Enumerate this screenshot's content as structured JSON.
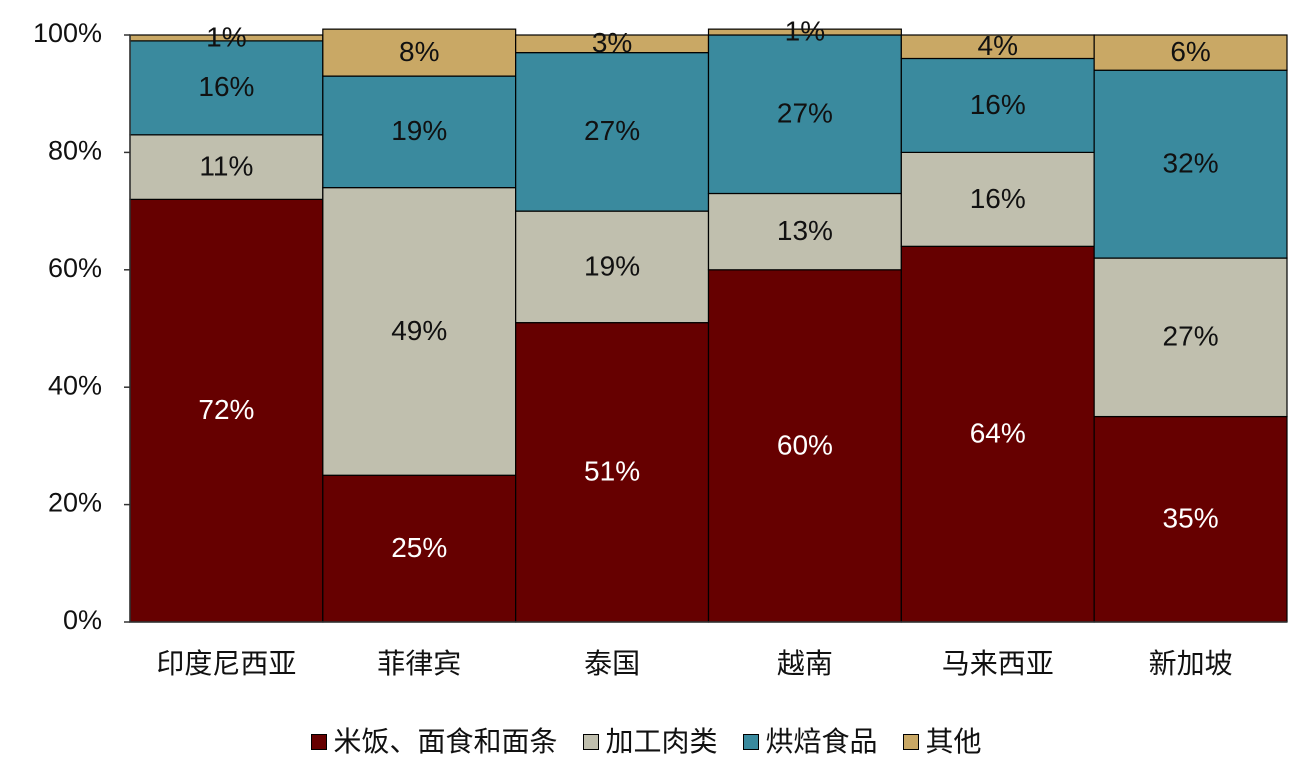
{
  "chart_data": {
    "type": "bar",
    "stacked": true,
    "percent": true,
    "categories": [
      "印度尼西亚",
      "菲律宾",
      "泰国",
      "越南",
      "马来西亚",
      "新加坡"
    ],
    "series": [
      {
        "name": "米饭、面食和面条",
        "color": "#660000",
        "label_color": "#ffffff",
        "values": [
          72,
          25,
          51,
          60,
          64,
          35
        ],
        "labels": [
          "72%",
          "25%",
          "51%",
          "60%",
          "64%",
          "35%"
        ]
      },
      {
        "name": "加工肉类",
        "color": "#c0bfae",
        "label_color": "#111111",
        "values": [
          11,
          49,
          19,
          13,
          16,
          27
        ],
        "labels": [
          "11%",
          "49%",
          "19%",
          "13%",
          "16%",
          "27%"
        ]
      },
      {
        "name": "烘焙食品",
        "color": "#3a8a9e",
        "label_color": "#111111",
        "values": [
          16,
          19,
          27,
          27,
          16,
          32
        ],
        "labels": [
          "16%",
          "19%",
          "27%",
          "27%",
          "16%",
          "32%"
        ]
      },
      {
        "name": "其他",
        "color": "#c9a865",
        "label_color": "#111111",
        "values": [
          1,
          8,
          3,
          1,
          4,
          6
        ],
        "labels": [
          "1%",
          "8%",
          "3%",
          "1%",
          "4%",
          "6%"
        ]
      }
    ],
    "y_ticks": [
      "0%",
      "20%",
      "40%",
      "60%",
      "80%",
      "100%"
    ],
    "ylim": [
      0,
      100
    ],
    "legend_position": "bottom",
    "grid": false
  }
}
